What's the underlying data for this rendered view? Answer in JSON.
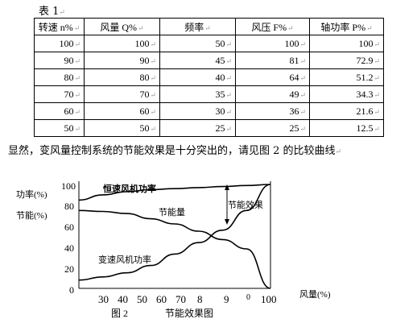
{
  "table_title": "表 1",
  "return_mark": "↵",
  "table": {
    "headers": [
      "转速 n%",
      "风量 Q%",
      "频率",
      "风压 F%",
      "轴功率 P%"
    ],
    "rows": [
      [
        "100",
        "100",
        "50",
        "100",
        "100"
      ],
      [
        "90",
        "90",
        "45",
        "81",
        "72.9"
      ],
      [
        "80",
        "80",
        "40",
        "64",
        "51.2"
      ],
      [
        "70",
        "70",
        "35",
        "49",
        "34.3"
      ],
      [
        "60",
        "60",
        "30",
        "36",
        "21.6"
      ],
      [
        "50",
        "50",
        "25",
        "25",
        "12.5"
      ]
    ]
  },
  "note": "显然，变风量控制系统的节能效果是十分突出的，请见图 2 的比较曲线",
  "figure": {
    "y_label_power": "功率(%)",
    "y_label_saving": "节能(%)",
    "x_label": "风量(%)",
    "caption_num": "图 2",
    "caption_text": "节能效果图",
    "y_ticks": [
      "100",
      "80",
      "60",
      "40",
      "20",
      "0"
    ],
    "x_ticks": [
      "30",
      "40",
      "50",
      "60",
      "70",
      "8",
      "9",
      "0",
      "100"
    ],
    "curve_label_constant": "恒速风机功率",
    "curve_label_saving_amount": "节能量",
    "curve_label_effect": "节能效果",
    "curve_label_variable": "变速风机功率"
  },
  "chart_data": {
    "type": "line",
    "title": "节能效果图",
    "xlabel": "风量(%)",
    "ylabel": "功率(%) / 节能(%)",
    "ylim": [
      0,
      100
    ],
    "x": [
      20,
      30,
      40,
      50,
      60,
      70,
      80,
      90,
      100
    ],
    "series": [
      {
        "name": "恒速风机功率",
        "values": [
          85,
          90,
          93,
          95,
          96,
          97,
          98,
          99,
          100
        ]
      },
      {
        "name": "变速风机功率",
        "values": [
          8,
          11,
          15,
          22,
          33,
          44,
          56,
          75,
          100
        ]
      },
      {
        "name": "节能量",
        "values": [
          75,
          74,
          72,
          67,
          62,
          55,
          47,
          38,
          0
        ]
      }
    ]
  }
}
